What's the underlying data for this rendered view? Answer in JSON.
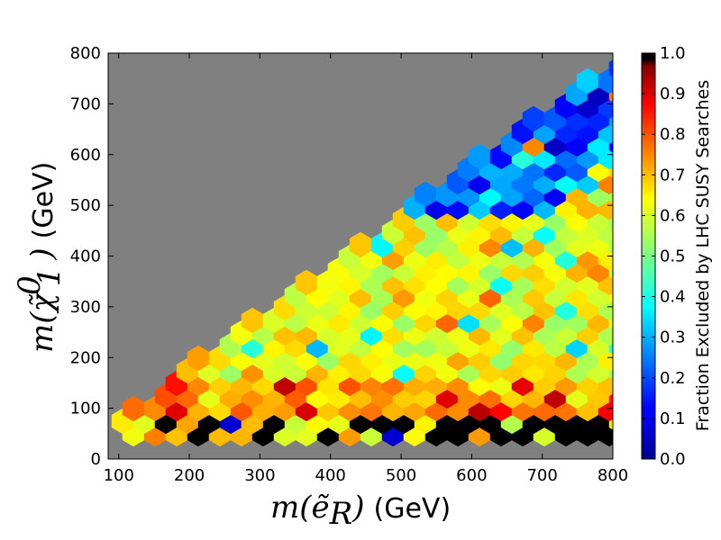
{
  "chart_data": {
    "type": "heatmap",
    "title": "",
    "xlabel": "m(ẽ_R) (GeV)",
    "xlabel_math": "m(ẽ",
    "xlabel_sub": "R",
    "xlabel_close": ")",
    "xlabel_unit": "(GeV)",
    "ylabel": "m(χ̃⁰₁) (GeV)",
    "ylabel_math": "m(χ̃",
    "ylabel_sup": "0",
    "ylabel_sub": "1",
    "ylabel_close": ")",
    "ylabel_unit": "(GeV)",
    "xlim": [
      85,
      800
    ],
    "ylim": [
      0,
      800
    ],
    "xticks": [
      100,
      200,
      300,
      400,
      500,
      600,
      700,
      800
    ],
    "yticks": [
      0,
      100,
      200,
      300,
      400,
      500,
      600,
      700,
      800
    ],
    "xtick_labels": [
      "100",
      "200",
      "300",
      "400",
      "500",
      "600",
      "700",
      "800"
    ],
    "ytick_labels": [
      "0",
      "100",
      "200",
      "300",
      "400",
      "500",
      "600",
      "700",
      "800"
    ],
    "background_color": "#808080",
    "colormap": "jet",
    "colorbar": {
      "label": "Fraction Excluded by LHC SUSY Searches",
      "range": [
        0.0,
        1.0
      ],
      "ticks": [
        0.0,
        0.1,
        0.2,
        0.3,
        0.4,
        0.5,
        0.6,
        0.7,
        0.8,
        0.9,
        1.0
      ],
      "tick_labels": [
        "0.0",
        "0.1",
        "0.2",
        "0.3",
        "0.4",
        "0.5",
        "0.6",
        "0.7",
        "0.8",
        "0.9",
        "1.0"
      ],
      "special_color_value": 1.0,
      "special_color": "#000000"
    },
    "hexbin": {
      "hex_width": 24,
      "row_step": 28,
      "region": "triangle: y < x (neutralino lighter than selectron), x up to 800, y from ~50",
      "features": {
        "black_strip_y": [
          40,
          110
        ],
        "high_fraction_band_y": [
          90,
          170
        ],
        "low_fraction_corner": "top-right near diagonal, values 0.05–0.3",
        "typical_value_range": [
          0.45,
          0.7
        ]
      }
    }
  }
}
